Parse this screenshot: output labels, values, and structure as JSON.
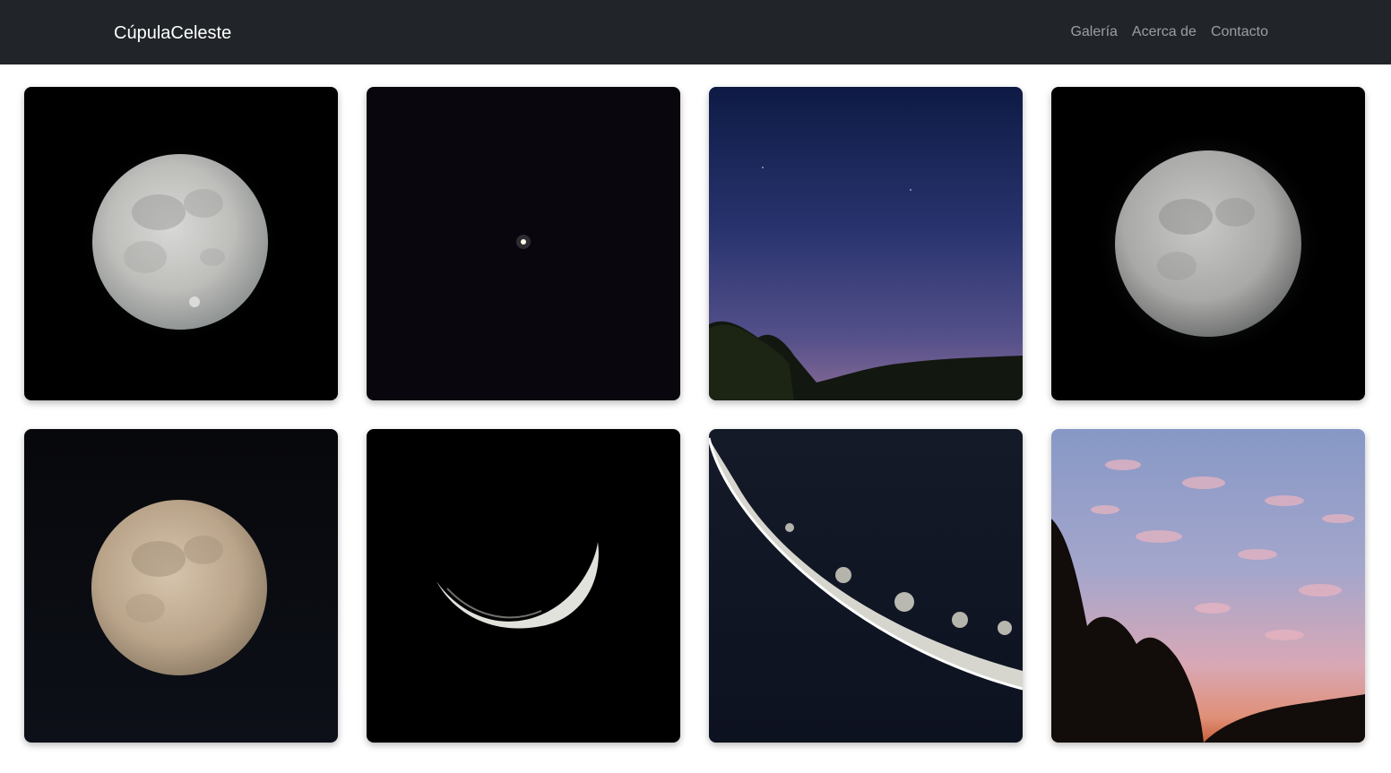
{
  "navbar": {
    "brand": "CúpulaCeleste",
    "links": [
      {
        "label": "Galería"
      },
      {
        "label": "Acerca de"
      },
      {
        "label": "Contacto"
      }
    ]
  },
  "gallery": {
    "photos": [
      {
        "subject": "full moon"
      },
      {
        "subject": "bright planet in dark sky"
      },
      {
        "subject": "dusk sky over treeline"
      },
      {
        "subject": "full moon with dark halo"
      },
      {
        "subject": "warm-toned full moon"
      },
      {
        "subject": "thin crescent moon"
      },
      {
        "subject": "close-up crescent moon with craters"
      },
      {
        "subject": "sunset clouds with tree silhouettes"
      }
    ]
  }
}
